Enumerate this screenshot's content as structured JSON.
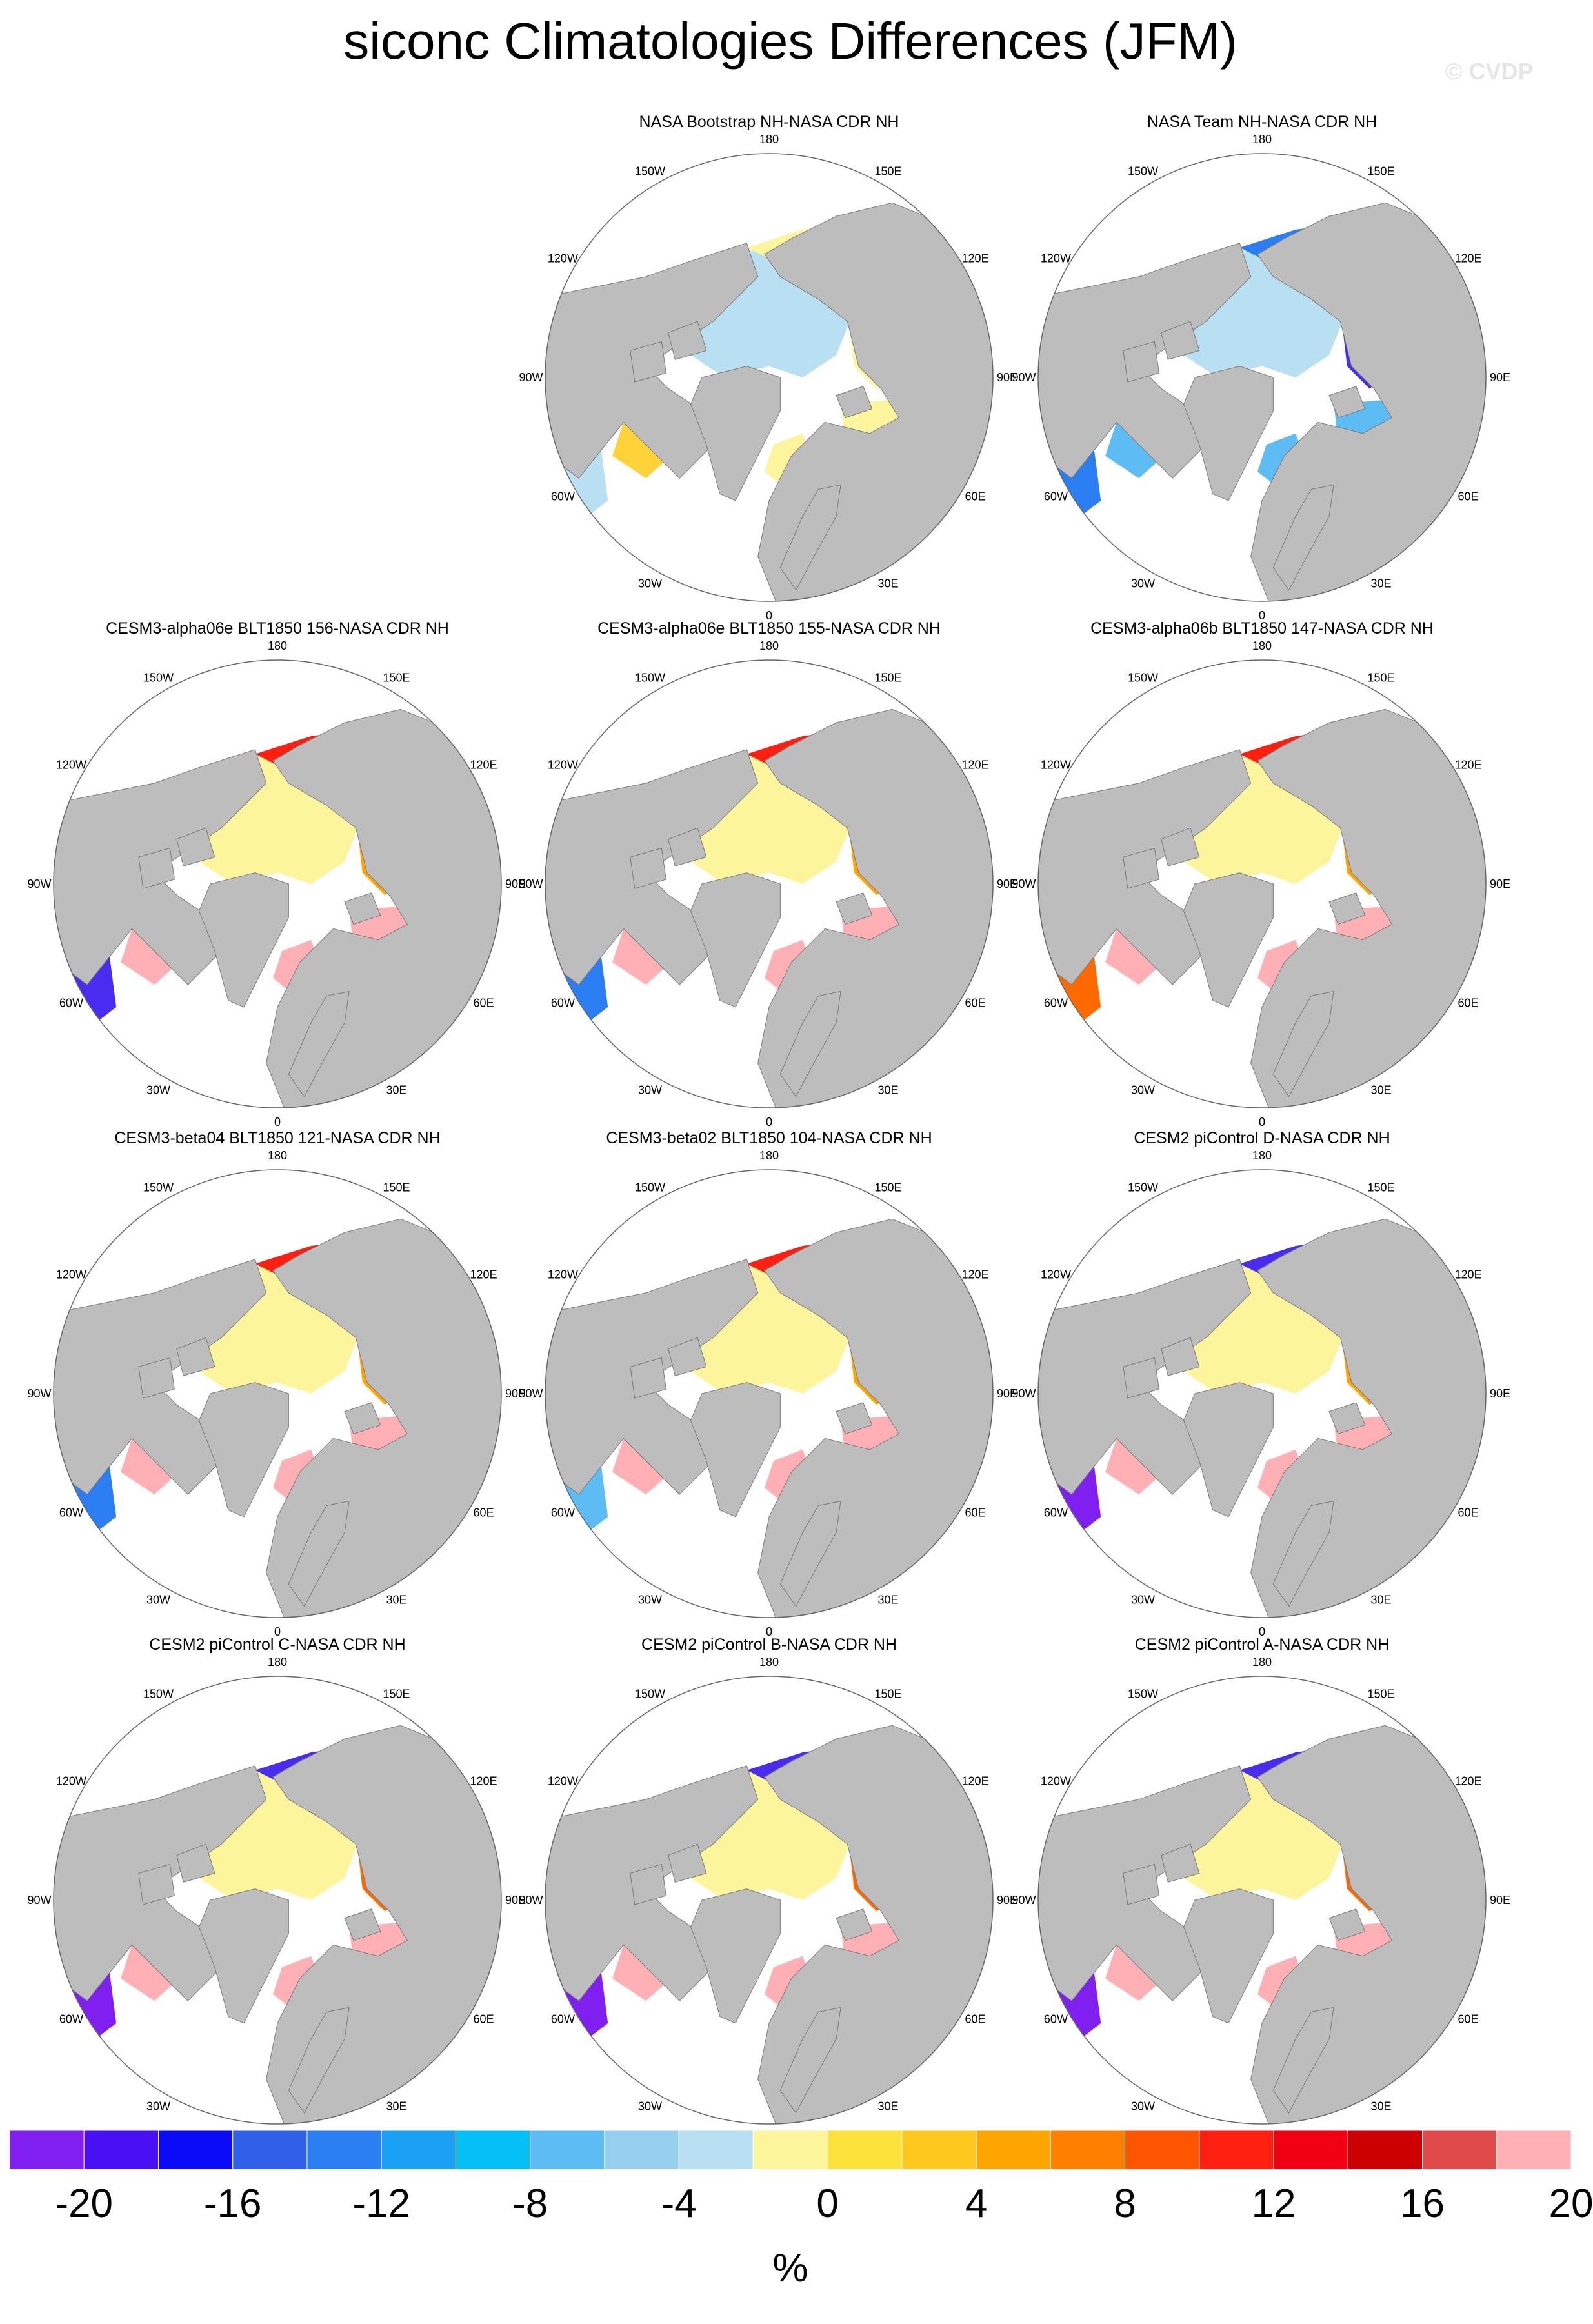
{
  "title": "siconc Climatologies Differences (JFM)",
  "watermark": "© CVDP",
  "lon_labels": [
    "180",
    "150E",
    "120E",
    "90E",
    "60E",
    "30E",
    "0",
    "30W",
    "60W",
    "90W",
    "120W",
    "150W"
  ],
  "panels": [
    {
      "title": "",
      "empty": true
    },
    {
      "title": "NASA Bootstrap NH-NASA CDR NH",
      "ocean_color": "#b9dff2",
      "shelf_color": "#fdf59c",
      "marginal_colors": [
        "#fdf59c",
        "#fdf59c",
        "#ffd23a",
        "#b9dff2"
      ]
    },
    {
      "title": "NASA Team NH-NASA CDR NH",
      "ocean_color": "#b9dff2",
      "shelf_color": "#5cbcf3",
      "marginal_colors": [
        "#2a7ef2",
        "#4a2cf0",
        "#5cbcf3",
        "#2a7ef2"
      ]
    },
    {
      "title": "CESM3-alpha06e BLT1850 156-NASA CDR NH",
      "ocean_color": "#fdf59c",
      "shelf_color": "#ffb0b4",
      "marginal_colors": [
        "#ff1f10",
        "#ffa500",
        "#ffb0b4",
        "#4a2cf0"
      ]
    },
    {
      "title": "CESM3-alpha06e BLT1850 155-NASA CDR NH",
      "ocean_color": "#fdf59c",
      "shelf_color": "#ffb0b4",
      "marginal_colors": [
        "#ff1f10",
        "#ffa500",
        "#ffb0b4",
        "#2a7ef2"
      ]
    },
    {
      "title": "CESM3-alpha06b BLT1850 147-NASA CDR NH",
      "ocean_color": "#fdf59c",
      "shelf_color": "#ffb0b4",
      "marginal_colors": [
        "#ff1f10",
        "#ffa500",
        "#ffb0b4",
        "#ff6a00"
      ]
    },
    {
      "title": "CESM3-beta04 BLT1850 121-NASA CDR NH",
      "ocean_color": "#fdf59c",
      "shelf_color": "#ffb0b4",
      "marginal_colors": [
        "#ff1f10",
        "#ffa500",
        "#ffb0b4",
        "#2a7ef2"
      ]
    },
    {
      "title": "CESM3-beta02 BLT1850 104-NASA CDR NH",
      "ocean_color": "#fdf59c",
      "shelf_color": "#ffb0b4",
      "marginal_colors": [
        "#ff1f10",
        "#ffa500",
        "#ffb0b4",
        "#5cbcf3"
      ]
    },
    {
      "title": "CESM2 piControl D-NASA CDR NH",
      "ocean_color": "#fdf59c",
      "shelf_color": "#ffb0b4",
      "marginal_colors": [
        "#4a2cf0",
        "#ffa500",
        "#ffb0b4",
        "#7f1ff0"
      ]
    },
    {
      "title": "CESM2 piControl C-NASA CDR NH",
      "ocean_color": "#fdf59c",
      "shelf_color": "#ffb0b4",
      "marginal_colors": [
        "#4a2cf0",
        "#ff6a00",
        "#ffb0b4",
        "#7f1ff0"
      ]
    },
    {
      "title": "CESM2 piControl B-NASA CDR NH",
      "ocean_color": "#fdf59c",
      "shelf_color": "#ffb0b4",
      "marginal_colors": [
        "#4a2cf0",
        "#ff6a00",
        "#ffb0b4",
        "#7f1ff0"
      ]
    },
    {
      "title": "CESM2 piControl A-NASA CDR NH",
      "ocean_color": "#fdf59c",
      "shelf_color": "#ffb0b4",
      "marginal_colors": [
        "#4a2cf0",
        "#ff6a00",
        "#ffb0b4",
        "#7f1ff0"
      ]
    }
  ],
  "colorbar": {
    "colors": [
      "#7f1ff0",
      "#4a10f5",
      "#0b0bf7",
      "#3060e8",
      "#2a7ef2",
      "#1aa0f5",
      "#05c0f5",
      "#5cbcf3",
      "#95d0ef",
      "#b9dff2",
      "#fdf59c",
      "#fde23c",
      "#ffc81e",
      "#ffa500",
      "#ff8000",
      "#ff5500",
      "#ff1f10",
      "#f00010",
      "#cc0000",
      "#e04a4a",
      "#ffb0b4"
    ],
    "labels": [
      "-20",
      "-16",
      "-12",
      "-8",
      "-4",
      "0",
      "4",
      "8",
      "12",
      "16",
      "20"
    ],
    "units": "%"
  }
}
